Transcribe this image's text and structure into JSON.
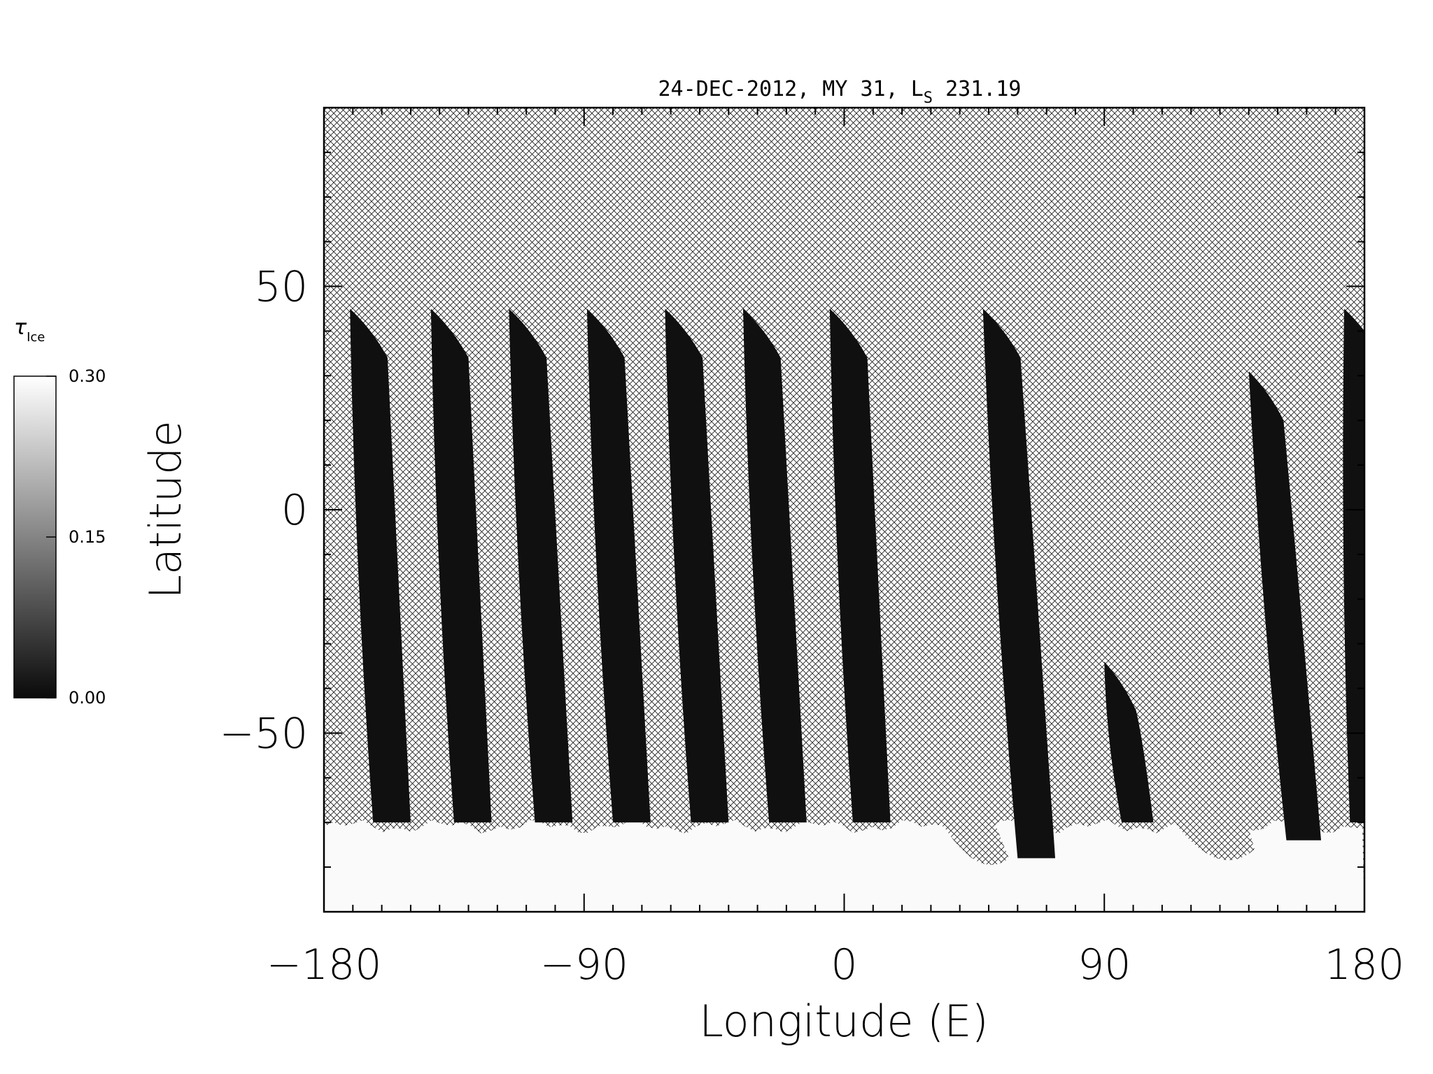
{
  "chart_data": {
    "type": "heatmap",
    "title": "24-DEC-2012, MY 31,  L",
    "title_subscript": "S",
    "title_suffix": " 231.19",
    "xlabel": "Longitude (E)",
    "ylabel": "Latitude",
    "xlim": [
      -180,
      180
    ],
    "ylim": [
      -90,
      90
    ],
    "x_ticks": [
      -180,
      -90,
      0,
      90,
      180
    ],
    "x_tick_labels": [
      "−180",
      "−90",
      "0",
      "90",
      "180"
    ],
    "y_ticks": [
      -50,
      0,
      50
    ],
    "y_tick_labels": [
      "−50",
      "0",
      "50"
    ],
    "missing_data": "cross-hatched",
    "colorbar": {
      "label": "τ",
      "label_subscript": "Ice",
      "min": 0.0,
      "max": 0.3,
      "ticks": [
        0.0,
        0.15,
        0.3
      ],
      "tick_labels": [
        "0.00",
        "0.15",
        "0.30"
      ],
      "colormap": "grayscale"
    },
    "swaths": [
      {
        "lon_top": -171,
        "lat_top": 45,
        "lon_bottom": -163,
        "lat_bottom": -70,
        "width": 13,
        "value": 0.0
      },
      {
        "lon_top": -143,
        "lat_top": 45,
        "lon_bottom": -135,
        "lat_bottom": -70,
        "width": 13,
        "value": 0.0
      },
      {
        "lon_top": -116,
        "lat_top": 45,
        "lon_bottom": -107,
        "lat_bottom": -70,
        "width": 13,
        "value": 0.0
      },
      {
        "lon_top": -89,
        "lat_top": 45,
        "lon_bottom": -80,
        "lat_bottom": -70,
        "width": 13,
        "value": 0.0
      },
      {
        "lon_top": -62,
        "lat_top": 45,
        "lon_bottom": -53,
        "lat_bottom": -70,
        "width": 13,
        "value": 0.0
      },
      {
        "lon_top": -35,
        "lat_top": 45,
        "lon_bottom": -26,
        "lat_bottom": -70,
        "width": 13,
        "value": 0.0
      },
      {
        "lon_top": -5,
        "lat_top": 45,
        "lon_bottom": 3,
        "lat_bottom": -70,
        "width": 13,
        "value": 0.0
      },
      {
        "lon_top": 48,
        "lat_top": 45,
        "lon_bottom": 60,
        "lat_bottom": -78,
        "width": 13,
        "value": 0.0
      },
      {
        "lon_top": 140,
        "lat_top": 31,
        "lon_bottom": 153,
        "lat_bottom": -74,
        "width": 12,
        "value": 0.0
      },
      {
        "lon_top": 173,
        "lat_top": 45,
        "lon_bottom": 175,
        "lat_bottom": -70,
        "width": 13,
        "value": 0.0
      },
      {
        "lon_top": 90,
        "lat_top": -34,
        "lon_bottom": 96,
        "lat_bottom": -70,
        "width": 11,
        "value": 0.0
      }
    ],
    "polar_ice_band": {
      "lat_top": -70,
      "lat_bottom": -90,
      "value": 0.3
    }
  }
}
